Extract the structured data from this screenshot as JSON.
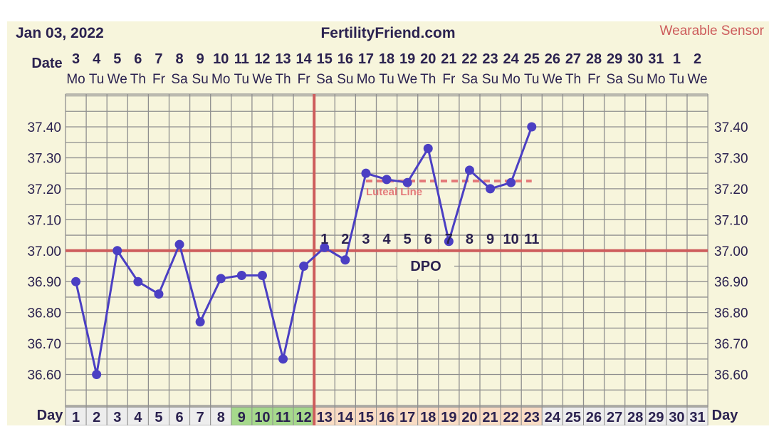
{
  "header": {
    "date": "Jan 03, 2022",
    "site": "FertilityFriend.com",
    "source": "Wearable Sensor"
  },
  "labels": {
    "date": "Date",
    "day": "Day",
    "dpo": "DPO",
    "luteal_line": "Luteal Line"
  },
  "colors": {
    "background": "#f7f5dc",
    "grid": "#8f8f8f",
    "series": "#4b3fc3",
    "coverline": "#cd5c5c",
    "ovulation_line": "#cd5c5c",
    "luteal_line": "#e47a7a",
    "fertile_day_cell": "#a6d98c",
    "luteal_day_cell": "#f9dcc4",
    "text": "#2b2250"
  },
  "chart_data": {
    "type": "line",
    "title": "",
    "xlabel": "Day",
    "ylabel": "",
    "ylim": [
      36.5,
      37.5
    ],
    "y_ticks": [
      "37.40",
      "37.30",
      "37.20",
      "37.10",
      "37.00",
      "36.90",
      "36.80",
      "36.70",
      "36.60"
    ],
    "dates": [
      "3",
      "4",
      "5",
      "6",
      "7",
      "8",
      "9",
      "10",
      "11",
      "12",
      "13",
      "14",
      "15",
      "16",
      "17",
      "18",
      "19",
      "20",
      "21",
      "22",
      "23",
      "24",
      "25",
      "26",
      "27",
      "28",
      "29",
      "30",
      "31",
      "1",
      "2"
    ],
    "weekdays": [
      "Mo",
      "Tu",
      "We",
      "Th",
      "Fr",
      "Sa",
      "Su",
      "Mo",
      "Tu",
      "We",
      "Th",
      "Fr",
      "Sa",
      "Su",
      "Mo",
      "Tu",
      "We",
      "Th",
      "Fr",
      "Sa",
      "Su",
      "Mo",
      "Tu",
      "We",
      "Th",
      "Fr",
      "Sa",
      "Su",
      "Mo",
      "Tu",
      "We"
    ],
    "cycle_days": [
      "1",
      "2",
      "3",
      "4",
      "5",
      "6",
      "7",
      "8",
      "9",
      "10",
      "11",
      "12",
      "13",
      "14",
      "15",
      "16",
      "17",
      "18",
      "19",
      "20",
      "21",
      "22",
      "23",
      "24",
      "25",
      "26",
      "27",
      "28",
      "29",
      "30",
      "31"
    ],
    "series": [
      {
        "x": [
          1,
          2,
          3,
          4,
          5,
          6,
          7,
          8,
          9,
          10,
          11,
          12,
          13,
          14,
          15,
          16,
          17,
          18,
          19,
          20,
          21,
          22,
          23
        ],
        "values": [
          36.9,
          36.6,
          37.0,
          36.9,
          36.86,
          37.02,
          36.77,
          36.91,
          36.92,
          36.92,
          36.65,
          36.95,
          37.01,
          36.97,
          37.25,
          37.23,
          37.22,
          37.33,
          37.03,
          37.26,
          37.2,
          37.22,
          37.4
        ]
      }
    ],
    "coverline": 37.0,
    "ovulation_day": 12,
    "luteal_line": {
      "value": 37.225,
      "from_day": 15,
      "to_day": 23
    },
    "dpo_labels": [
      "1",
      "2",
      "3",
      "4",
      "5",
      "6",
      "7",
      "8",
      "9",
      "10",
      "11"
    ],
    "dpo_start_day": 13,
    "fertile_days": [
      9,
      10,
      11,
      12
    ],
    "luteal_days": [
      13,
      14,
      15,
      16,
      17,
      18,
      19,
      20,
      21,
      22,
      23
    ]
  }
}
